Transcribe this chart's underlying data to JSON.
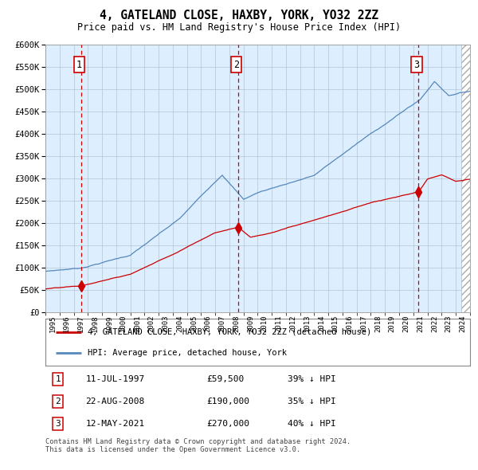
{
  "title": "4, GATELAND CLOSE, HAXBY, YORK, YO32 2ZZ",
  "subtitle": "Price paid vs. HM Land Registry's House Price Index (HPI)",
  "legend_line1": "4, GATELAND CLOSE, HAXBY, YORK, YO32 2ZZ (detached house)",
  "legend_line2": "HPI: Average price, detached house, York",
  "transaction1_date": "11-JUL-1997",
  "transaction1_price": 59500,
  "transaction1_hpi": "39% ↓ HPI",
  "transaction2_date": "22-AUG-2008",
  "transaction2_price": 190000,
  "transaction2_hpi": "35% ↓ HPI",
  "transaction3_date": "12-MAY-2021",
  "transaction3_price": 270000,
  "transaction3_hpi": "40% ↓ HPI",
  "footer": "Contains HM Land Registry data © Crown copyright and database right 2024.\nThis data is licensed under the Open Government Licence v3.0.",
  "red_color": "#cc0000",
  "blue_color": "#5588bb",
  "plot_bg": "#ddeeff",
  "ylim_min": 0,
  "ylim_max": 600000,
  "x_start_year": 1995,
  "x_end_year": 2025,
  "t1_year": 1997.54,
  "t2_year": 2008.63,
  "t3_year": 2021.37
}
